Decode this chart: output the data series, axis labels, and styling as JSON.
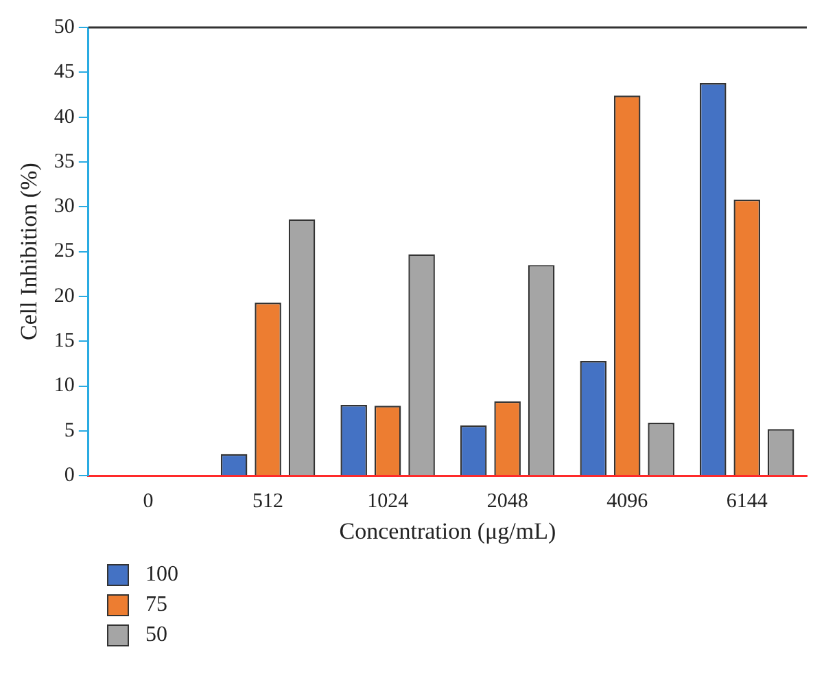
{
  "chart_data": {
    "type": "bar",
    "xlabel": "Concentration (μg/mL)",
    "ylabel": "Cell Inhibition (%)",
    "categories": [
      "0",
      "512",
      "1024",
      "2048",
      "4096",
      "6144"
    ],
    "series": [
      {
        "name": "100",
        "color": "#4472c4",
        "values": [
          0,
          2.4,
          7.9,
          5.6,
          12.8,
          43.8
        ]
      },
      {
        "name": "75",
        "color": "#ed7d31",
        "values": [
          0,
          19.3,
          7.8,
          8.3,
          42.4,
          30.8
        ]
      },
      {
        "name": "50",
        "color": "#a5a5a5",
        "values": [
          0,
          28.6,
          24.7,
          23.5,
          5.9,
          5.2
        ]
      }
    ],
    "ylim": [
      0,
      50
    ],
    "yticks": [
      0,
      5,
      10,
      15,
      20,
      25,
      30,
      35,
      40,
      45,
      50
    ],
    "grid": false,
    "legend": "bottom left"
  }
}
